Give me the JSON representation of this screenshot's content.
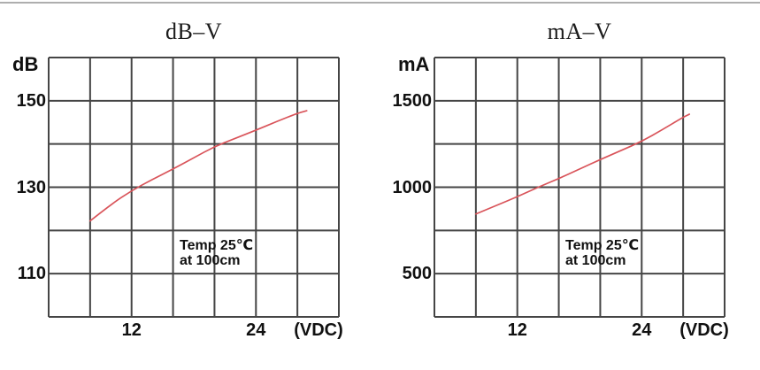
{
  "page": {
    "background": "#ffffff",
    "top_rule_color": "#aeaeae"
  },
  "style": {
    "curve_color": "#d9545a",
    "grid_color": "#454545",
    "text_color": "#141414"
  },
  "chart_data": [
    {
      "type": "line",
      "title": "dB–V",
      "ylabel": "dB",
      "xlabel": "(VDC)",
      "grid": true,
      "legend": null,
      "x_axis": {
        "min": 4,
        "max": 32,
        "grid_step": 4,
        "tick_labels": [
          12,
          24
        ]
      },
      "y_axis": {
        "min": 100,
        "max": 160,
        "grid_step": 10,
        "tick_labels": [
          150,
          130,
          110
        ]
      },
      "annotation": [
        "Temp 25℃",
        "at 100cm"
      ],
      "series": [
        {
          "name": "sound-pressure-vs-voltage",
          "color": "#d9545a",
          "points": [
            [
              8,
              122.2
            ],
            [
              10,
              126.0
            ],
            [
              12,
              129.2
            ],
            [
              14,
              131.8
            ],
            [
              16,
              134.2
            ],
            [
              18,
              136.8
            ],
            [
              20,
              139.4
            ],
            [
              22,
              141.3
            ],
            [
              24,
              143.2
            ],
            [
              26,
              145.2
            ],
            [
              28,
              147.1
            ],
            [
              28.9,
              147.7
            ]
          ]
        }
      ]
    },
    {
      "type": "line",
      "title": "mA–V",
      "ylabel": "mA",
      "xlabel": "(VDC)",
      "grid": true,
      "legend": null,
      "x_axis": {
        "min": 4,
        "max": 32,
        "grid_step": 4,
        "tick_labels": [
          12,
          24
        ]
      },
      "y_axis": {
        "min": 250,
        "max": 1750,
        "grid_step": 250,
        "tick_labels": [
          1500,
          1000,
          500
        ]
      },
      "annotation": [
        "Temp 25℃",
        "at 100cm"
      ],
      "series": [
        {
          "name": "current-consumption-vs-voltage",
          "color": "#d9545a",
          "points": [
            [
              8,
              845
            ],
            [
              10,
              895
            ],
            [
              12,
              945
            ],
            [
              14,
              1000
            ],
            [
              16,
              1050
            ],
            [
              18,
              1105
            ],
            [
              20,
              1160
            ],
            [
              22,
              1212
            ],
            [
              24,
              1265
            ],
            [
              26,
              1333
            ],
            [
              28,
              1405
            ],
            [
              28.6,
              1422
            ]
          ]
        }
      ]
    }
  ]
}
